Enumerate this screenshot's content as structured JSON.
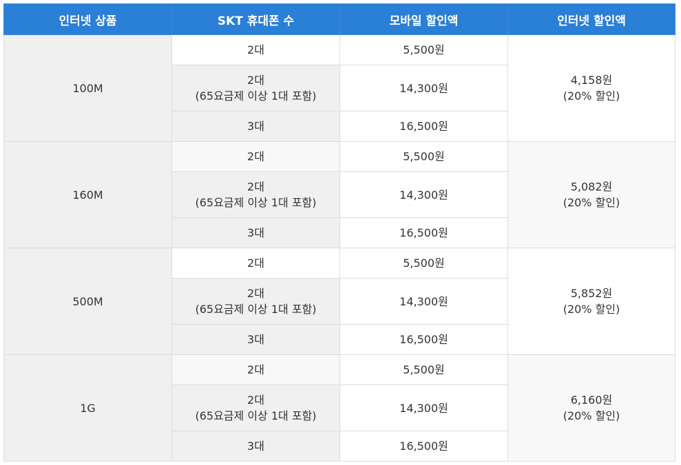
{
  "headers": [
    "인터넷 상품",
    "SKT 휴대폰 수",
    "모바일 할인액",
    "인터넷 할인액"
  ],
  "groups": [
    {
      "product": "100M",
      "rows": [
        {
          "count": [
            "2대"
          ],
          "mobile_discount": "5,500원"
        },
        {
          "count": [
            "2대",
            "(65요금제 이상 1대 포함)"
          ],
          "mobile_discount": "14,300원"
        },
        {
          "count": [
            "3대"
          ],
          "mobile_discount": "16,500원"
        }
      ],
      "internet_discount": [
        "4,158원",
        "(20% 할인)"
      ]
    },
    {
      "product": "160M",
      "rows": [
        {
          "count": [
            "2대"
          ],
          "mobile_discount": "5,500원"
        },
        {
          "count": [
            "2대",
            "(65요금제 이상 1대 포함)"
          ],
          "mobile_discount": "14,300원"
        },
        {
          "count": [
            "3대"
          ],
          "mobile_discount": "16,500원"
        }
      ],
      "internet_discount": [
        "5,082원",
        "(20% 할인)"
      ]
    },
    {
      "product": "500M",
      "rows": [
        {
          "count": [
            "2대"
          ],
          "mobile_discount": "5,500원"
        },
        {
          "count": [
            "2대",
            "(65요금제 이상 1대 포함)"
          ],
          "mobile_discount": "14,300원"
        },
        {
          "count": [
            "3대"
          ],
          "mobile_discount": "16,500원"
        }
      ],
      "internet_discount": [
        "5,852원",
        "(20% 할인)"
      ]
    },
    {
      "product": "1G",
      "rows": [
        {
          "count": [
            "2대"
          ],
          "mobile_discount": "5,500원"
        },
        {
          "count": [
            "2대",
            "(65요금제 이상 1대 포함)"
          ],
          "mobile_discount": "14,300원"
        },
        {
          "count": [
            "3대"
          ],
          "mobile_discount": "16,500원"
        }
      ],
      "internet_discount": [
        "6,160원",
        "(20% 할인)"
      ]
    }
  ],
  "colors": {
    "header_bg": "#2a7fd6",
    "header_text": "#ffffff",
    "product_bg": "#f0f0f0",
    "border": "#dcdcdc"
  }
}
